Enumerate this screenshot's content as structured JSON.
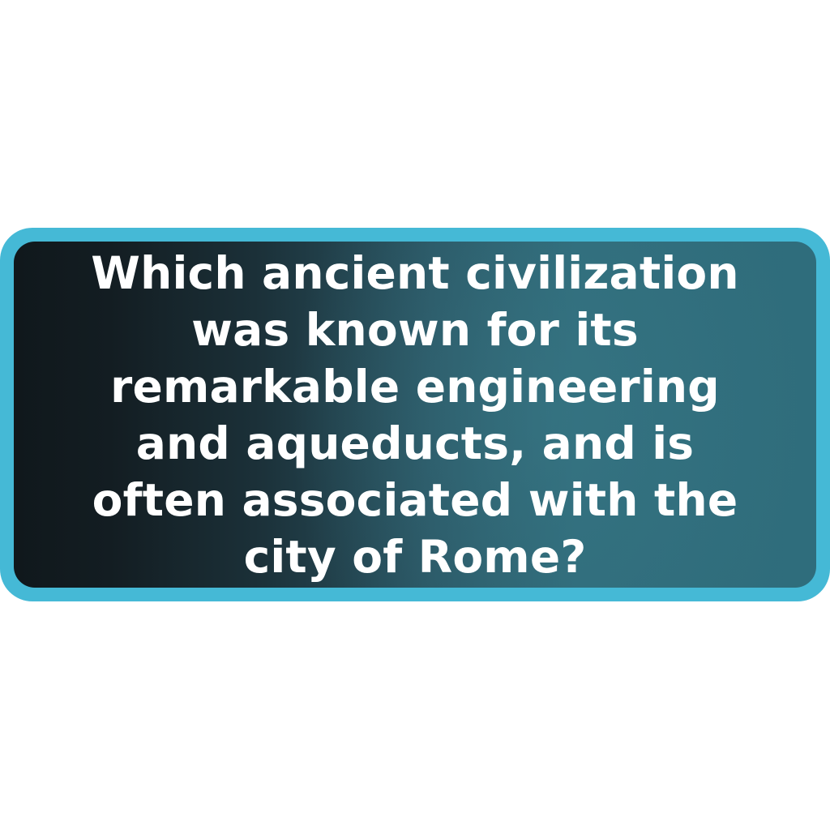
{
  "question": {
    "text": "Which ancient civilization\nwas known for its\nremarkable engineering\nand aqueducts, and is\noften associated with the\ncity of Rome?"
  },
  "colors": {
    "frame_border": "#45b9d6",
    "panel_dark": "#10181c",
    "panel_teal": "#2f6d7c",
    "text": "#ffffff",
    "background": "#ffffff"
  }
}
